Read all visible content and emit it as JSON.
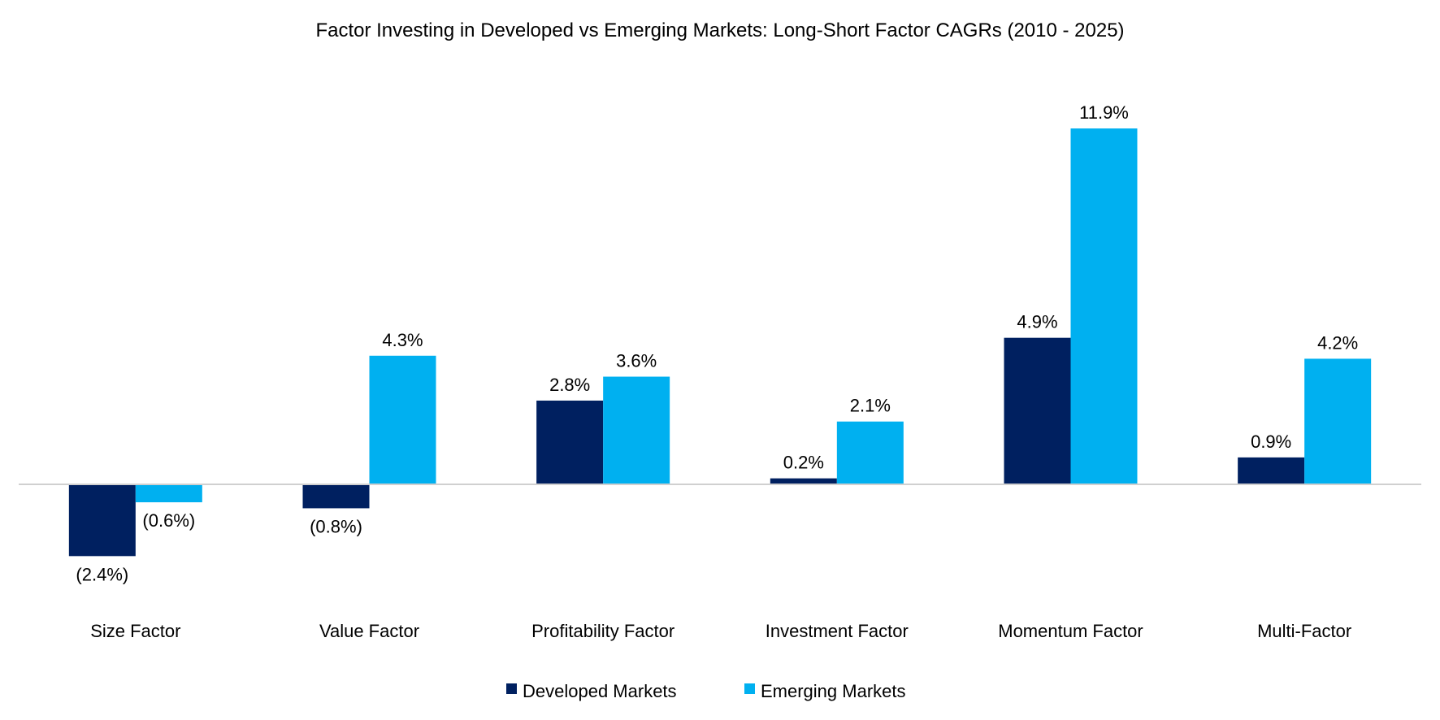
{
  "chart_data": {
    "type": "bar",
    "title": "Factor Investing in Developed vs Emerging Markets: Long-Short Factor CAGRs (2010 - 2025)",
    "categories": [
      "Size Factor",
      "Value Factor",
      "Profitability Factor",
      "Investment Factor",
      "Momentum Factor",
      "Multi-Factor"
    ],
    "series": [
      {
        "name": "Developed Markets",
        "color": "#002060",
        "values": [
          -2.4,
          -0.8,
          2.8,
          0.2,
          4.9,
          0.9
        ],
        "labels": [
          "(2.4%)",
          "(0.8%)",
          "2.8%",
          "0.2%",
          "4.9%",
          "0.9%"
        ]
      },
      {
        "name": "Emerging Markets",
        "color": "#00B0F0",
        "values": [
          -0.6,
          4.3,
          3.6,
          2.1,
          11.9,
          4.2
        ],
        "labels": [
          "(0.6%)",
          "4.3%",
          "3.6%",
          "2.1%",
          "11.9%",
          "4.2%"
        ]
      }
    ],
    "unit": "%",
    "xlabel": "",
    "ylabel": "",
    "y_axis_visible": false,
    "grid": false,
    "legend_position": "bottom"
  }
}
